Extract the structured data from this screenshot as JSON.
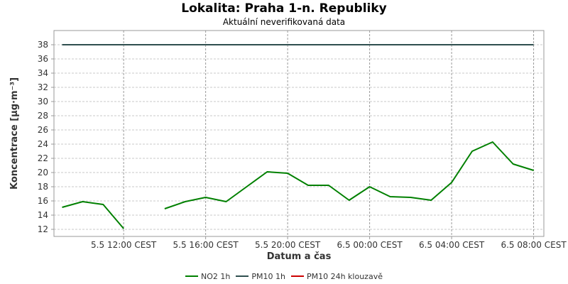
{
  "chart_data": {
    "type": "line",
    "title": "Lokalita: Praha 1-n. Republiky",
    "subtitle": "Aktuální neverifikovaná data",
    "xlabel": "Datum a čas",
    "ylabel": "Koncentrace [µg·m⁻³]",
    "ylim": [
      11,
      40
    ],
    "y_ticks": [
      12,
      14,
      16,
      18,
      20,
      22,
      24,
      26,
      28,
      30,
      32,
      34,
      36,
      38
    ],
    "xlim": [
      7.6,
      31.5
    ],
    "x_ticks": [
      {
        "x": 11,
        "label": "5.5 12:00 CEST"
      },
      {
        "x": 15,
        "label": "5.5 16:00 CEST"
      },
      {
        "x": 19,
        "label": "5.5 20:00 CEST"
      },
      {
        "x": 23,
        "label": "6.5 00:00 CEST"
      },
      {
        "x": 27,
        "label": "6.5 04:00 CEST"
      },
      {
        "x": 31,
        "label": "6.5 08:00 CEST"
      }
    ],
    "grid": true,
    "legend_position": "bottom",
    "series": [
      {
        "name": "NO2 1h",
        "color": "#008000",
        "points": [
          [
            8,
            15.1
          ],
          [
            9,
            15.9
          ],
          [
            10,
            15.5
          ],
          [
            11,
            12.1
          ],
          null,
          [
            13,
            14.9
          ],
          [
            14,
            15.9
          ],
          [
            15,
            16.5
          ],
          [
            16,
            15.9
          ],
          [
            17,
            18.0
          ],
          [
            18,
            20.1
          ],
          [
            19,
            19.9
          ],
          [
            20,
            18.2
          ],
          [
            21,
            18.2
          ],
          [
            22,
            16.1
          ],
          [
            23,
            18.0
          ],
          [
            24,
            16.6
          ],
          [
            25,
            16.5
          ],
          [
            26,
            16.1
          ],
          [
            27,
            18.6
          ],
          [
            28,
            23.0
          ],
          [
            29,
            24.3
          ],
          [
            30,
            21.2
          ],
          [
            31,
            20.3
          ]
        ]
      },
      {
        "name": "PM10 1h",
        "color": "#2f4f4f",
        "points": [
          [
            8,
            38
          ],
          [
            31,
            38
          ]
        ]
      },
      {
        "name": "PM10 24h klouzavě",
        "color": "#cc0000",
        "points": []
      }
    ]
  }
}
